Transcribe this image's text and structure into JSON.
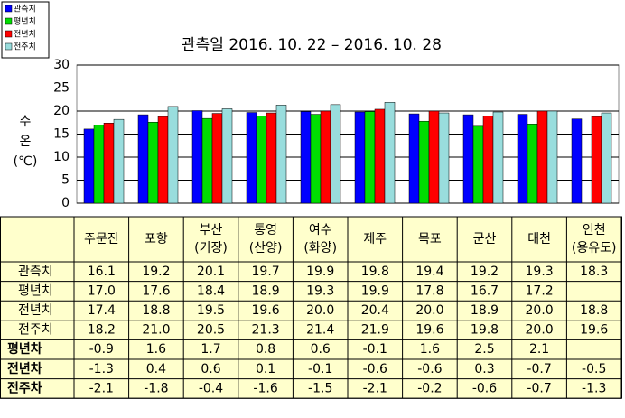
{
  "chart_data": {
    "type": "bar",
    "title": "관측일 2016. 10. 22 – 2016. 10. 28",
    "y_label_lines": [
      "수",
      "온",
      "(℃)"
    ],
    "ylim": [
      0,
      30
    ],
    "yticks": [
      0,
      5,
      10,
      15,
      20,
      25,
      30
    ],
    "grid": true,
    "legend": "top-left",
    "categories": [
      [
        "주문진"
      ],
      [
        "포항"
      ],
      [
        "부산",
        "(기장)"
      ],
      [
        "통영",
        "(산양)"
      ],
      [
        "여수",
        "(화양)"
      ],
      [
        "제주"
      ],
      [
        "목포"
      ],
      [
        "군산"
      ],
      [
        "대천"
      ],
      [
        "인천",
        "(용유도)"
      ]
    ],
    "series": [
      {
        "name": "관측치",
        "color": "#0000ff",
        "values": [
          16.1,
          19.2,
          20.1,
          19.7,
          19.9,
          19.8,
          19.4,
          19.2,
          19.3,
          18.3
        ],
        "value_labels": [
          "16.1",
          "19.2",
          "20.1",
          "19.7",
          "19.9",
          "19.8",
          "19.4",
          "19.2",
          "19.3",
          "18.3"
        ]
      },
      {
        "name": "평년치",
        "color": "#00dd00",
        "values": [
          17.0,
          17.6,
          18.4,
          18.9,
          19.3,
          19.9,
          17.8,
          16.7,
          17.2,
          null
        ],
        "value_labels": [
          "17.0",
          "17.6",
          "18.4",
          "18.9",
          "19.3",
          "19.9",
          "17.8",
          "16.7",
          "17.2",
          null
        ]
      },
      {
        "name": "전년치",
        "color": "#ff0000",
        "values": [
          17.4,
          18.8,
          19.5,
          19.6,
          20.0,
          20.4,
          20.0,
          18.9,
          20.0,
          18.8
        ],
        "value_labels": [
          "17.4",
          "18.8",
          "19.5",
          "19.6",
          "20.0",
          "20.4",
          "20.0",
          "18.9",
          "20.0",
          "18.8"
        ]
      },
      {
        "name": "전주치",
        "color": "#99dddd",
        "values": [
          18.2,
          21.0,
          20.5,
          21.3,
          21.4,
          21.9,
          19.6,
          19.8,
          20.0,
          19.6
        ],
        "value_labels": [
          "18.2",
          "21.0",
          "20.5",
          "21.3",
          "21.4",
          "21.9",
          "19.6",
          "19.8",
          "20.0",
          "19.6"
        ]
      }
    ]
  },
  "table": {
    "diff_rows": [
      {
        "label": "평년차",
        "values": [
          -0.9,
          1.6,
          1.7,
          0.8,
          0.6,
          -0.1,
          1.6,
          2.5,
          2.1,
          null
        ]
      },
      {
        "label": "전년차",
        "values": [
          -1.3,
          0.4,
          0.6,
          0.1,
          -0.1,
          -0.6,
          -0.6,
          0.3,
          -0.7,
          -0.5
        ]
      },
      {
        "label": "전주차",
        "values": [
          -2.1,
          -1.8,
          -0.4,
          -1.6,
          -1.5,
          -2.1,
          -0.2,
          -0.6,
          -0.7,
          -1.3
        ]
      }
    ]
  }
}
